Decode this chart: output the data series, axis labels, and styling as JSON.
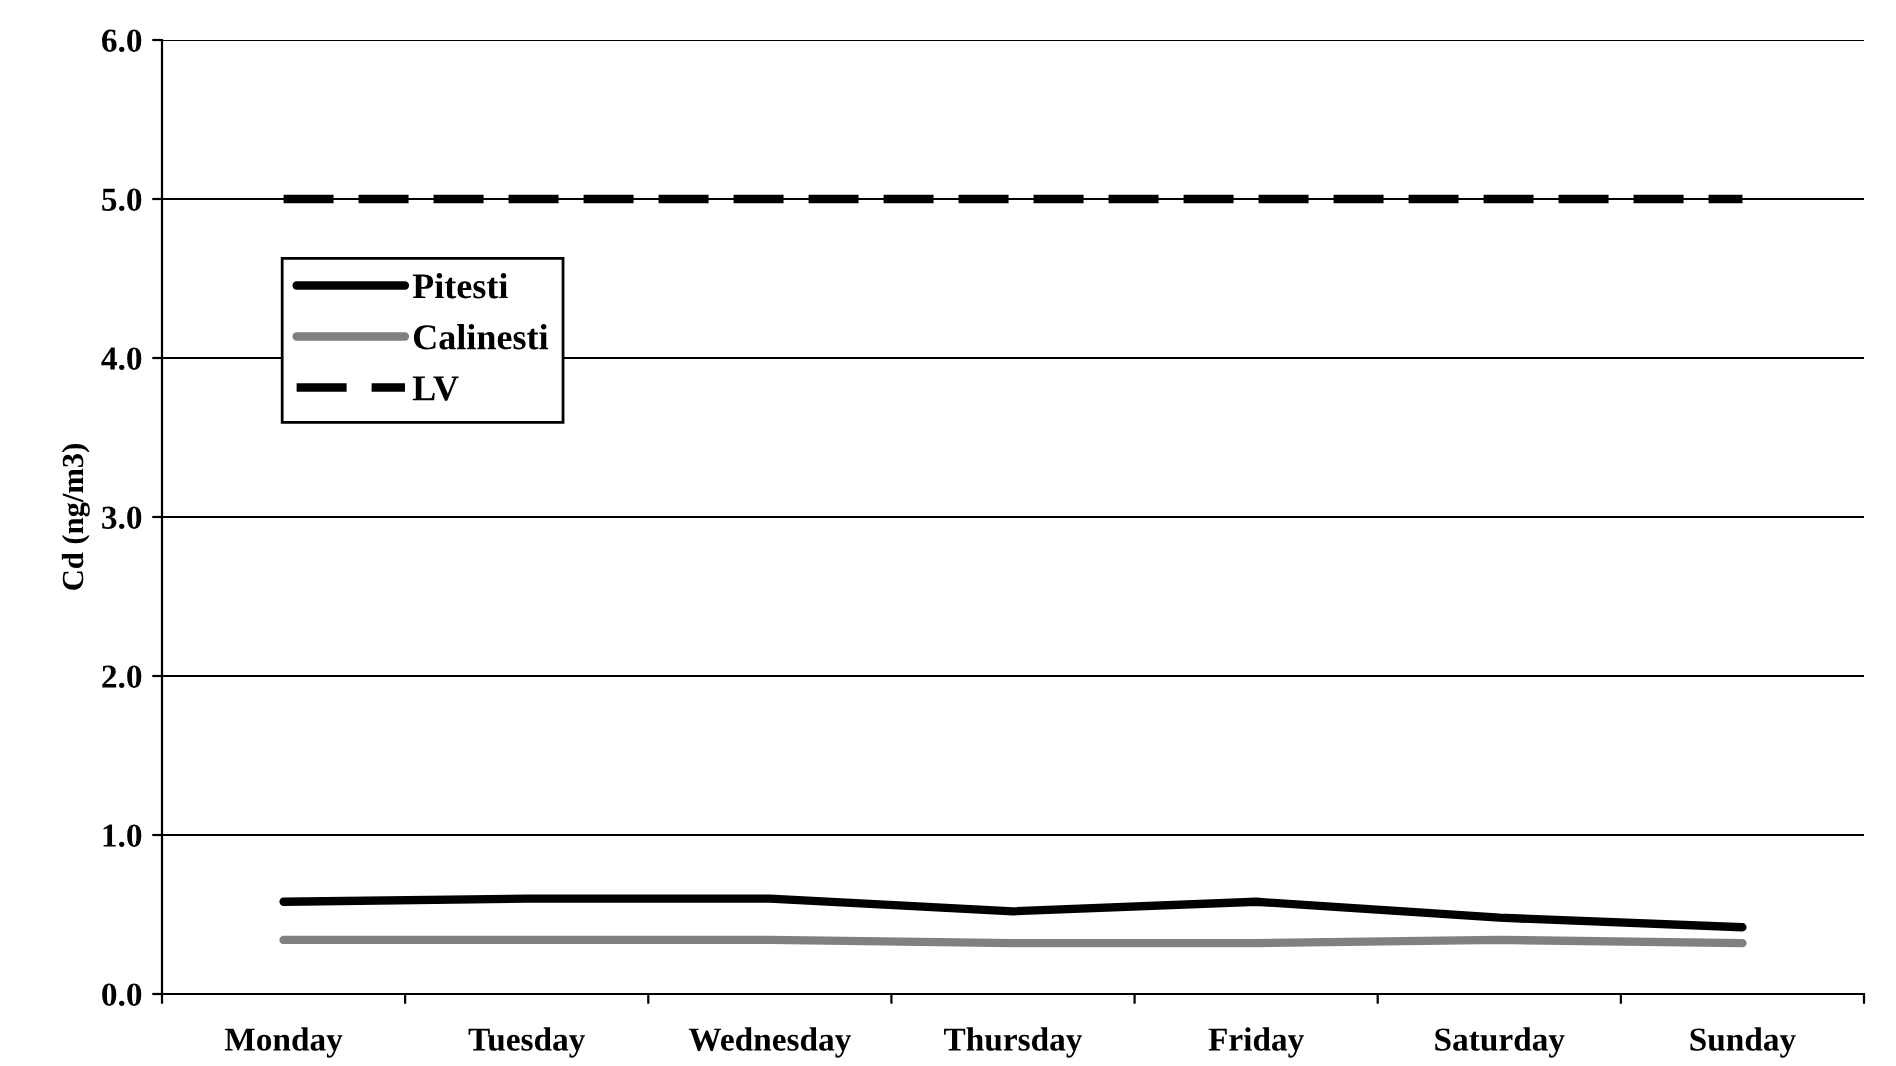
{
  "chart_data": {
    "type": "line",
    "ylabel": "Cd (ng/m3)",
    "categories": [
      "Monday",
      "Tuesday",
      "Wednesday",
      "Thursday",
      "Friday",
      "Saturday",
      "Sunday"
    ],
    "series": [
      {
        "name": "Pitesti",
        "color": "#000000",
        "values": [
          0.58,
          0.6,
          0.6,
          0.52,
          0.58,
          0.48,
          0.42
        ]
      },
      {
        "name": "Calinesti",
        "color": "#808080",
        "values": [
          0.34,
          0.34,
          0.34,
          0.32,
          0.32,
          0.34,
          0.32
        ]
      },
      {
        "name": "LV",
        "color": "#000000",
        "line_style": "dashed",
        "values": [
          5.0,
          5.0,
          5.0,
          5.0,
          5.0,
          5.0,
          5.0
        ]
      }
    ],
    "ylim": [
      0,
      6
    ],
    "yticks": [
      {
        "value": 0,
        "label": "0.0"
      },
      {
        "value": 1,
        "label": "1.0"
      },
      {
        "value": 2,
        "label": "2.0"
      },
      {
        "value": 3,
        "label": "3.0"
      },
      {
        "value": 4,
        "label": "4.0"
      },
      {
        "value": 5,
        "label": "5.0"
      },
      {
        "value": 6,
        "label": "6.0"
      }
    ],
    "grid": "y",
    "legend": "top left",
    "marker": "none"
  }
}
